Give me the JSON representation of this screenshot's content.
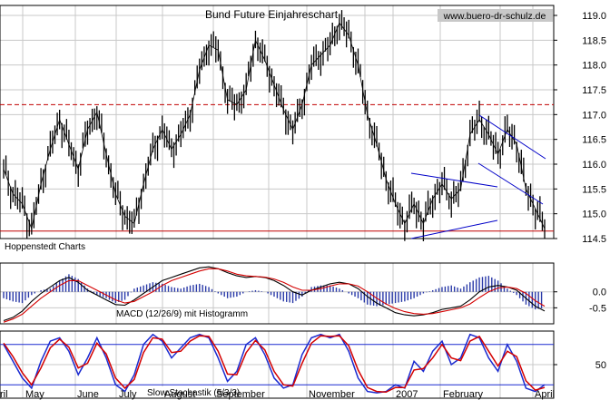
{
  "colors": {
    "background": "#ffffff",
    "grid": "#c8c8c8",
    "price": "#000000",
    "resistance": "#c00000",
    "support": "#c00000",
    "trendline": "#0000c8",
    "histogram": "#2a3aa8",
    "macd_line": "#000000",
    "signal_line": "#d40000",
    "stoch_k": "#1a2ad0",
    "stoch_d": "#d40000",
    "band": "#1a2ad0"
  },
  "header": {
    "title": "Bund Future Einjahreschart",
    "watermark": "www.buero-dr-schulz.de",
    "source": "Hoppenstedt Charts"
  },
  "x_axis": {
    "labels": [
      "ril",
      "May",
      "June",
      "July",
      "August",
      "September",
      "November",
      "2007",
      "February",
      "April"
    ]
  },
  "chart_data": [
    {
      "type": "line",
      "series": [
        {
          "values": [
            115.9,
            115.4,
            115.2,
            114.7,
            115.6,
            116.3,
            116.9,
            116.4,
            115.9,
            116.7,
            117.05,
            116.2,
            115.4,
            114.95,
            114.8,
            115.6,
            116.3,
            116.7,
            116.3,
            116.6,
            117.0,
            117.9,
            118.4,
            118.3,
            117.3,
            117.2,
            117.5,
            118.5,
            118.1,
            117.6,
            117.1,
            116.7,
            117.2,
            118.0,
            118.2,
            118.4,
            118.85,
            118.6,
            118.0,
            117.0,
            116.4,
            115.7,
            115.2,
            114.8,
            115.2,
            114.8,
            115.3,
            115.6,
            115.3,
            115.5,
            116.6,
            116.9,
            116.6,
            116.2,
            116.7,
            116.4,
            115.5,
            115.1,
            114.7
          ]
        }
      ],
      "reference_lines": {
        "resistance": 117.2,
        "support": 114.65
      },
      "ylim": [
        114.5,
        119.0
      ],
      "y_ticks": [
        "114.5",
        "115.0",
        "115.5",
        "116.0",
        "116.5",
        "117.0",
        "117.5",
        "118.0",
        "118.5",
        "119.0"
      ],
      "grid": true
    },
    {
      "type": "bar",
      "title": "MACD (12/26/9) mit Histogramm",
      "series": [
        {
          "values": [
            -0.9,
            -0.8,
            -0.6,
            -0.3,
            -0.05,
            0.15,
            0.35,
            0.45,
            0.3,
            0.05,
            -0.1,
            -0.25,
            -0.4,
            -0.42,
            -0.25,
            -0.05,
            0.15,
            0.35,
            0.45,
            0.55,
            0.65,
            0.75,
            0.78,
            0.72,
            0.6,
            0.5,
            0.45,
            0.48,
            0.45,
            0.35,
            0.2,
            0.0,
            -0.1,
            0.05,
            0.15,
            0.25,
            0.3,
            0.25,
            0.1,
            -0.15,
            -0.35,
            -0.5,
            -0.65,
            -0.72,
            -0.75,
            -0.72,
            -0.65,
            -0.55,
            -0.5,
            -0.45,
            -0.25,
            0.0,
            0.15,
            0.2,
            0.15,
            0.05,
            -0.2,
            -0.45,
            -0.6
          ]
        },
        {
          "values": [
            -0.95,
            -0.85,
            -0.7,
            -0.45,
            -0.2,
            0.0,
            0.2,
            0.35,
            0.35,
            0.2,
            0.05,
            -0.1,
            -0.25,
            -0.35,
            -0.3,
            -0.15,
            0.0,
            0.2,
            0.35,
            0.45,
            0.55,
            0.65,
            0.72,
            0.72,
            0.65,
            0.55,
            0.5,
            0.48,
            0.46,
            0.4,
            0.3,
            0.15,
            0.05,
            0.05,
            0.1,
            0.18,
            0.25,
            0.25,
            0.18,
            0.0,
            -0.2,
            -0.38,
            -0.52,
            -0.62,
            -0.68,
            -0.7,
            -0.68,
            -0.62,
            -0.56,
            -0.5,
            -0.38,
            -0.18,
            0.0,
            0.12,
            0.15,
            0.1,
            -0.05,
            -0.28,
            -0.45
          ]
        }
      ],
      "histogram": [
        -0.2,
        -0.3,
        -0.35,
        -0.1,
        0.05,
        0.1,
        0.35,
        0.55,
        0.4,
        0.1,
        -0.1,
        -0.2,
        -0.35,
        -0.25,
        0.1,
        0.2,
        0.3,
        0.25,
        0.15,
        0.1,
        0.2,
        0.25,
        0.15,
        -0.05,
        -0.2,
        -0.15,
        0.0,
        0.05,
        0.0,
        -0.15,
        -0.3,
        -0.35,
        -0.15,
        0.15,
        0.2,
        0.2,
        0.1,
        -0.05,
        -0.2,
        -0.4,
        -0.45,
        -0.4,
        -0.35,
        -0.3,
        -0.2,
        -0.05,
        0.05,
        0.15,
        0.2,
        0.1,
        0.3,
        0.45,
        0.5,
        0.35,
        0.1,
        -0.1,
        -0.4,
        -0.55,
        -0.5
      ],
      "ylim": [
        -1.0,
        0.9
      ],
      "y_ticks": [
        "-0.5",
        "0.0"
      ],
      "grid": true
    },
    {
      "type": "line",
      "title": "Slow Stochastik (5/3/3)",
      "series": [
        {
          "values": [
            80,
            55,
            30,
            15,
            55,
            85,
            90,
            70,
            35,
            60,
            90,
            60,
            20,
            10,
            35,
            80,
            95,
            85,
            60,
            75,
            90,
            95,
            90,
            60,
            25,
            40,
            80,
            90,
            65,
            30,
            15,
            20,
            65,
            90,
            95,
            90,
            95,
            70,
            30,
            10,
            8,
            10,
            20,
            15,
            55,
            40,
            70,
            85,
            50,
            60,
            95,
            90,
            60,
            40,
            80,
            55,
            15,
            10,
            20
          ]
        },
        {
          "values": [
            82,
            62,
            38,
            20,
            45,
            75,
            88,
            76,
            45,
            52,
            82,
            66,
            30,
            15,
            28,
            68,
            90,
            88,
            68,
            70,
            85,
            93,
            92,
            70,
            36,
            35,
            68,
            86,
            72,
            40,
            20,
            18,
            52,
            82,
            93,
            92,
            93,
            78,
            42,
            16,
            10,
            9,
            16,
            16,
            42,
            44,
            60,
            80,
            60,
            56,
            85,
            92,
            70,
            48,
            70,
            62,
            26,
            12,
            16
          ]
        }
      ],
      "ylim": [
        0,
        100
      ],
      "y_ticks": [
        "50"
      ],
      "bands": [
        80,
        20
      ],
      "grid": true
    }
  ]
}
